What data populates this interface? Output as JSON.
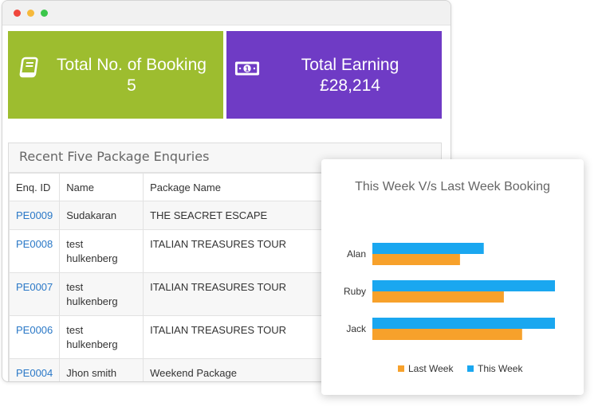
{
  "window": {
    "controls": [
      "close",
      "minimize",
      "maximize"
    ]
  },
  "cards": [
    {
      "icon": "book-icon",
      "label": "Total No. of Booking",
      "value": "5",
      "color": "#9dbd2f"
    },
    {
      "icon": "money-icon",
      "label": "Total Earning",
      "value": "£28,214",
      "color": "#6f3bc5"
    }
  ],
  "enquiries": {
    "title": "Recent Five Package Enquries",
    "columns": [
      "Enq. ID",
      "Name",
      "Package Name"
    ],
    "rows": [
      {
        "id": "PE0009",
        "name": [
          "Sudakaran"
        ],
        "package": "THE SEACRET ESCAPE"
      },
      {
        "id": "PE0008",
        "name": [
          "test",
          "hulkenberg"
        ],
        "package": "ITALIAN TREASURES TOUR"
      },
      {
        "id": "PE0007",
        "name": [
          "test",
          "hulkenberg"
        ],
        "package": "ITALIAN TREASURES TOUR"
      },
      {
        "id": "PE0006",
        "name": [
          "test",
          "hulkenberg"
        ],
        "package": "ITALIAN TREASURES TOUR"
      },
      {
        "id": "PE0004",
        "name": [
          "Jhon smith"
        ],
        "package": "Weekend Package"
      }
    ]
  },
  "chart_data": {
    "type": "bar",
    "orientation": "horizontal",
    "title": "This Week V/s Last Week Booking",
    "categories": [
      "Alan",
      "Ruby",
      "Jack"
    ],
    "series": [
      {
        "name": "This Week",
        "color": "#1aa7f0",
        "values": [
          0.61,
          1.0,
          1.0
        ]
      },
      {
        "name": "Last Week",
        "color": "#f7a12b",
        "values": [
          0.48,
          0.72,
          0.82
        ]
      }
    ],
    "legend": [
      "Last Week",
      "This Week"
    ],
    "legend_position": "bottom",
    "grid": false
  }
}
